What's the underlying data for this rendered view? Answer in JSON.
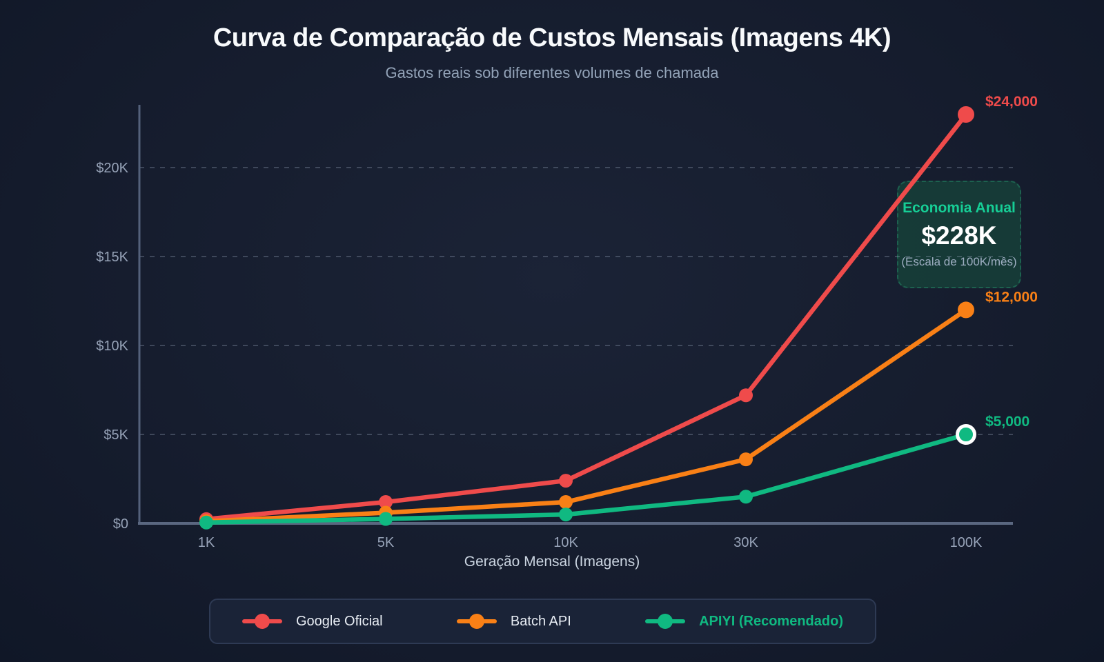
{
  "chart_data": {
    "type": "line",
    "title": "Curva de Comparação de Custos Mensais (Imagens 4K)",
    "subtitle": "Gastos reais sob diferentes volumes de chamada",
    "xlabel": "Geração Mensal (Imagens)",
    "ylabel": "",
    "x_categories": [
      "1K",
      "5K",
      "10K",
      "30K",
      "100K"
    ],
    "y_tick_labels": [
      "$0",
      "$5K",
      "$10K",
      "$15K",
      "$20K"
    ],
    "y_tick_values": [
      0,
      5000,
      10000,
      15000,
      20000
    ],
    "ylim": [
      0,
      24000
    ],
    "grid": "horizontal-dashed",
    "legend_position": "bottom",
    "series": [
      {
        "name": "Google Oficial",
        "color": "#EF4B4B",
        "values": [
          240,
          1200,
          2400,
          7200,
          24000
        ],
        "end_label": "$24,000",
        "highlight": false
      },
      {
        "name": "Batch API",
        "color": "#F98016",
        "values": [
          120,
          600,
          1200,
          3600,
          12000
        ],
        "end_label": "$12,000",
        "highlight": false
      },
      {
        "name": "APIYI (Recomendado)",
        "color": "#10B981",
        "values": [
          50,
          250,
          500,
          1500,
          5000
        ],
        "end_label": "$5,000",
        "highlight": true
      }
    ],
    "annotation": {
      "title": "Economia Anual",
      "value": "$228K",
      "note": "(Escala de 100K/mês)"
    }
  }
}
